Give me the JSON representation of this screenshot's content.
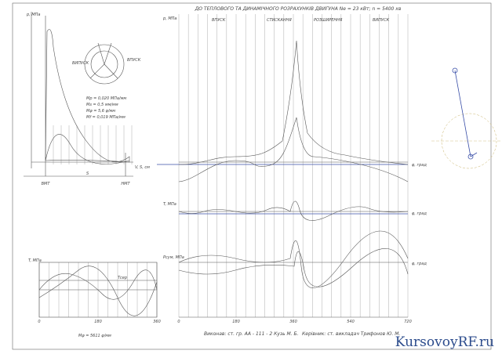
{
  "sheet": {
    "title": "ДО ТЕПЛОВОГО ТА ДИНАМІЧНОГО РОЗРАХУНКІВ ДВИГУНА Nе = 23 кВт; n = 5400 хв",
    "phases": [
      "ВПУСК",
      "СТИСКАННЯ",
      "РОЗШИРЕННЯ",
      "ВИПУСК"
    ],
    "main_axis": [
      "0",
      "180",
      "360",
      "540",
      "720"
    ],
    "axis_unit": "φ, град",
    "main_labels": [
      "p, МПа",
      "T, МПа",
      "Pсум, МПа"
    ],
    "indicator": {
      "y_label": "p, МПа",
      "x_label": "V, S, см",
      "tdc": "ВМТ",
      "bdc": "НМТ",
      "stroke": "S",
      "scales": [
        "Mp = 0,020 МПа/мм",
        "Ms = 0,5 мм/мм",
        "Mφ = 5,6 φ/мм",
        "Mf = 0,019 МПа/мм"
      ],
      "valve": [
        "ВПУСК",
        "ВИПУСК"
      ]
    },
    "torque": {
      "y_label": "T, МПа",
      "axis": [
        "0",
        "180",
        "360"
      ],
      "avg": "Tсер",
      "scale": "Mφ = 5611 φ/мм"
    },
    "footer": {
      "author": "Виконав: ст. гр. АА - 111 - 2 Кузь М. Б.",
      "supervisor": "Керівник: ст. викладач Трифонов Ю. М."
    },
    "watermark": "KursovoyRF.ru"
  }
}
